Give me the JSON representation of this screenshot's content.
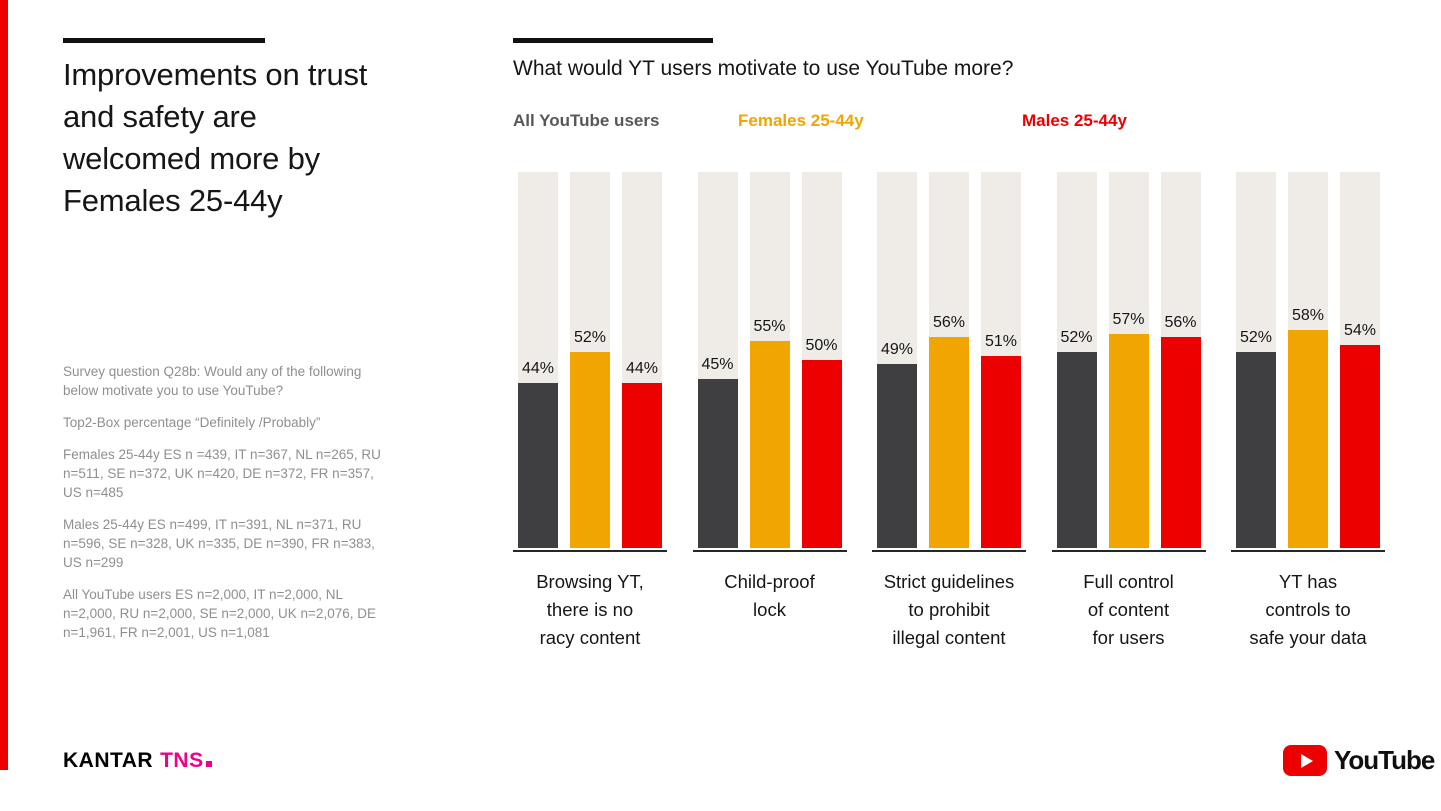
{
  "slide": {
    "title": "Improvements on trust and safety are welcomed more by Females 25-44y",
    "title_display": "Improvements on trust\nand safety are\nwelcomed more by\nFemales 25-44y",
    "notes": [
      "Survey question Q28b: Would any of the following below motivate you to use YouTube?",
      "Top2-Box percentage “Definitely /Probably”",
      "Females 25-44y ES n =439, IT n=367, NL n=265, RU n=511, SE n=372, UK n=420, DE n=372, FR n=357, US n=485",
      "Males 25-44y ES n=499, IT n=391, NL n=371, RU n=596, SE n=328, UK n=335, DE n=390, FR n=383, US n=299",
      "All YouTube users ES n=2,000, IT n=2,000, NL n=2,000, RU n=2,000, SE n=2,000, UK n=2,076, DE n=1,961, FR n=2,001, US n=1,081"
    ]
  },
  "chart": {
    "title": "What would YT users motivate to use YouTube more?",
    "legend": [
      {
        "label": "All YouTube users",
        "color": "#58585A"
      },
      {
        "label": "Females 25-44y",
        "color": "#F0A500"
      },
      {
        "label": "Males 25-44y",
        "color": "#EC0000"
      }
    ]
  },
  "chart_data": {
    "type": "bar",
    "title": "What would YT users motivate to use YouTube more?",
    "categories": [
      "Browsing YT, there is no racy content",
      "Child-proof lock",
      "Strict guidelines to prohibit illegal content",
      "Full control of content for users",
      "YT has controls to safe your data"
    ],
    "category_display": [
      "Browsing YT,\nthere is no\nracy content",
      "Child-proof\nlock",
      "Strict guidelines\nto prohibit\nillegal content",
      "Full control\nof content\nfor users",
      "YT has\ncontrols to\nsafe your data"
    ],
    "series": [
      {
        "name": "All YouTube users",
        "color": "#3F3F41",
        "values": [
          44,
          45,
          49,
          52,
          52
        ]
      },
      {
        "name": "Females 25-44y",
        "color": "#F0A500",
        "values": [
          52,
          55,
          56,
          57,
          58
        ]
      },
      {
        "name": "Males 25-44y",
        "color": "#EC0000",
        "values": [
          44,
          50,
          51,
          56,
          54
        ]
      }
    ],
    "ylim": [
      0,
      100
    ],
    "value_suffix": "%",
    "track_color": "#EFECE8",
    "grid": false,
    "legend_position": "top"
  },
  "footer": {
    "kantar": "KANTAR",
    "tns": "TNS",
    "youtube": "YouTube"
  }
}
